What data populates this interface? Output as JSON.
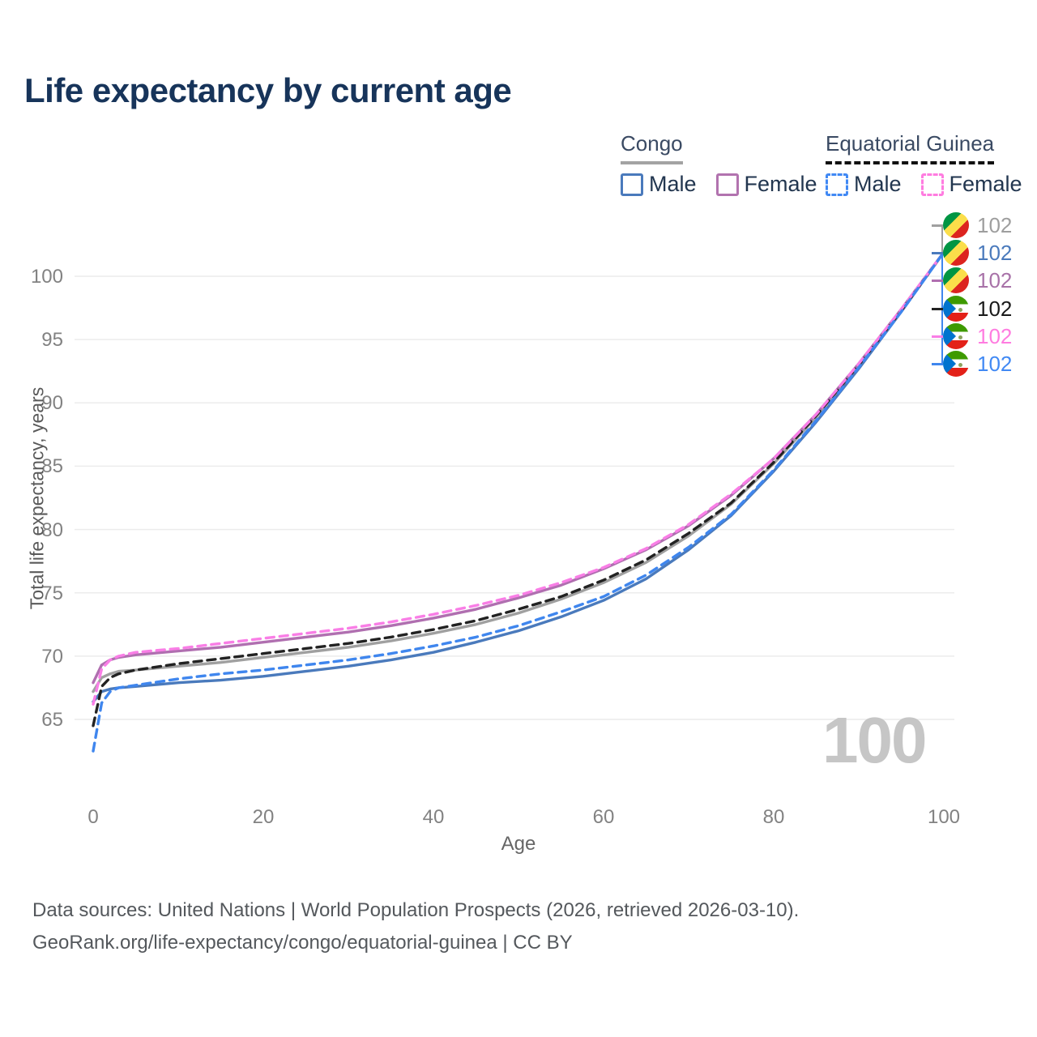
{
  "title": "Life expectancy by current age",
  "legend": {
    "groups": [
      {
        "label": "Congo",
        "style": "solid",
        "items": [
          {
            "label": "Male"
          },
          {
            "label": "Female"
          }
        ]
      },
      {
        "label": "Equatorial Guinea",
        "style": "dashed",
        "items": [
          {
            "label": "Male"
          },
          {
            "label": "Female"
          }
        ]
      }
    ]
  },
  "end_labels": [
    {
      "flag": "congo",
      "series": "Congo Total",
      "value": "102",
      "color": "#9e9e9e"
    },
    {
      "flag": "congo",
      "series": "Congo Male",
      "value": "102",
      "color": "#4a7abc"
    },
    {
      "flag": "congo",
      "series": "Congo Female",
      "value": "102",
      "color": "#a872a8"
    },
    {
      "flag": "equatorial-guinea",
      "series": "Equatorial Guinea Total",
      "value": "102",
      "color": "#1a1a1a"
    },
    {
      "flag": "equatorial-guinea",
      "series": "Equatorial Guinea Female",
      "value": "102",
      "color": "#ff7ce0"
    },
    {
      "flag": "equatorial-guinea",
      "series": "Equatorial Guinea Male",
      "value": "102",
      "color": "#4189f4"
    }
  ],
  "watermark": "100",
  "axes": {
    "x": {
      "label": "Age",
      "ticks": [
        "0",
        "20",
        "40",
        "60",
        "80",
        "100"
      ]
    },
    "y": {
      "label": "Total life expectancy, years",
      "ticks": [
        "100",
        "95",
        "90",
        "85",
        "80",
        "75",
        "70",
        "65"
      ]
    }
  },
  "footer": {
    "line1": "Data sources: United Nations | World Population Prospects (2026, retrieved 2026-03-10).",
    "line2": "GeoRank.org/life-expectancy/congo/equatorial-guinea | CC BY"
  },
  "chart_data": {
    "type": "line",
    "title": "Life expectancy by current age",
    "xlabel": "Age",
    "ylabel": "Total life expectancy, years",
    "x_ticks": [
      0,
      20,
      40,
      60,
      80,
      100
    ],
    "y_ticks": [
      65,
      70,
      75,
      80,
      85,
      90,
      95,
      100
    ],
    "xlim": [
      0,
      100
    ],
    "ylim": [
      62,
      103
    ],
    "grid": "horizontal-only",
    "legend_position": "top-right",
    "ages": [
      0,
      1,
      2,
      3,
      5,
      10,
      15,
      20,
      25,
      30,
      35,
      40,
      45,
      50,
      55,
      60,
      65,
      70,
      75,
      80,
      85,
      90,
      95,
      100
    ],
    "series": [
      {
        "name": "Congo Total",
        "country": "Congo",
        "sex": "Total",
        "color": "#a0a0a0",
        "dash": false,
        "values": [
          67.2,
          68.3,
          68.6,
          68.8,
          68.9,
          69.2,
          69.5,
          69.9,
          70.3,
          70.7,
          71.2,
          71.8,
          72.5,
          73.4,
          74.5,
          75.8,
          77.4,
          79.5,
          82.0,
          85.2,
          88.9,
          92.9,
          97.3,
          101.9
        ]
      },
      {
        "name": "Congo Male",
        "country": "Congo",
        "sex": "Male",
        "color": "#4a7abc",
        "dash": false,
        "values": [
          66.4,
          67.2,
          67.4,
          67.5,
          67.6,
          67.9,
          68.1,
          68.4,
          68.8,
          69.2,
          69.7,
          70.3,
          71.1,
          72.0,
          73.1,
          74.4,
          76.1,
          78.4,
          81.1,
          84.6,
          88.5,
          92.7,
          97.2,
          101.9
        ]
      },
      {
        "name": "Congo Female",
        "country": "Congo",
        "sex": "Female",
        "color": "#b06fb0",
        "dash": false,
        "values": [
          67.9,
          69.3,
          69.7,
          69.9,
          70.1,
          70.4,
          70.7,
          71.1,
          71.5,
          71.9,
          72.4,
          73.0,
          73.7,
          74.6,
          75.6,
          76.9,
          78.4,
          80.3,
          82.7,
          85.6,
          89.1,
          93.1,
          97.4,
          101.9
        ]
      },
      {
        "name": "Equatorial Guinea Total",
        "country": "Equatorial Guinea",
        "sex": "Total",
        "color": "#222222",
        "dash": true,
        "values": [
          64.5,
          67.6,
          68.3,
          68.6,
          68.9,
          69.4,
          69.8,
          70.2,
          70.6,
          71.0,
          71.5,
          72.1,
          72.8,
          73.7,
          74.7,
          76.0,
          77.6,
          79.7,
          82.1,
          85.3,
          89.0,
          93.0,
          97.3,
          101.9
        ]
      },
      {
        "name": "Equatorial Guinea Female",
        "country": "Equatorial Guinea",
        "sex": "Female",
        "color": "#f97ee6",
        "dash": true,
        "values": [
          66.2,
          69.0,
          69.7,
          70.0,
          70.3,
          70.6,
          71.0,
          71.4,
          71.8,
          72.2,
          72.7,
          73.3,
          74.0,
          74.8,
          75.8,
          77.0,
          78.5,
          80.4,
          82.8,
          85.6,
          89.1,
          93.1,
          97.4,
          101.9
        ]
      },
      {
        "name": "Equatorial Guinea Male",
        "country": "Equatorial Guinea",
        "sex": "Male",
        "color": "#3f86ee",
        "dash": true,
        "values": [
          62.5,
          66.3,
          67.2,
          67.5,
          67.7,
          68.2,
          68.6,
          68.9,
          69.3,
          69.7,
          70.2,
          70.8,
          71.5,
          72.4,
          73.5,
          74.7,
          76.4,
          78.6,
          81.2,
          84.7,
          88.6,
          92.8,
          97.2,
          101.9
        ]
      }
    ],
    "end_value_labels": [
      "102",
      "102",
      "102",
      "102",
      "102",
      "102"
    ]
  }
}
